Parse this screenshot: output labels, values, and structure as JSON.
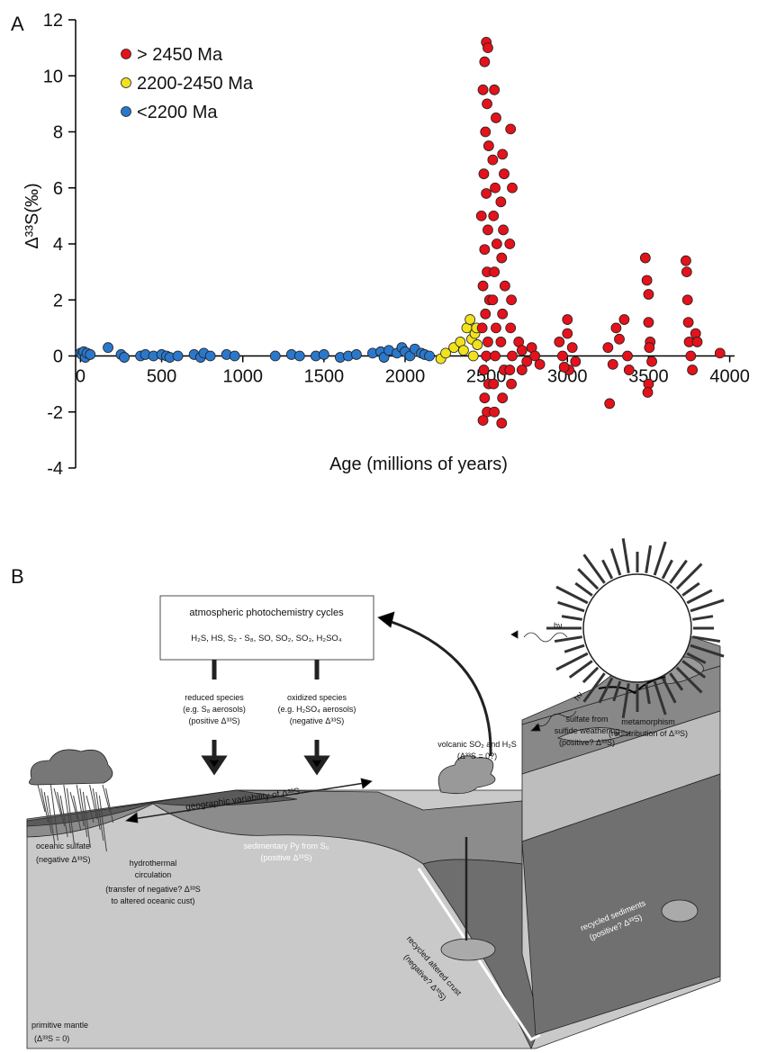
{
  "panel_labels": [
    "A",
    "B"
  ],
  "chart_data": {
    "type": "scatter",
    "x_label": "Age (millions of years)",
    "y_label": "Δ³³S(‰)",
    "xlim": [
      -30,
      4030
    ],
    "ylim": [
      -4,
      12
    ],
    "xticks": [
      0,
      500,
      1000,
      1500,
      2000,
      2500,
      3000,
      3500,
      4000
    ],
    "yticks": [
      -4,
      -2,
      0,
      2,
      4,
      6,
      8,
      10,
      12
    ],
    "legend": "upper left",
    "series": [
      {
        "name": "> 2450 Ma",
        "color": "#e3121b",
        "x": [
          2500,
          2510,
          2490,
          2480,
          2505,
          2495,
          2515,
          2485,
          2500,
          2470,
          2510,
          2490,
          2505,
          2480,
          2520,
          2495,
          2475,
          2510,
          2500,
          2485,
          2515,
          2490,
          2505,
          2480,
          2550,
          2560,
          2540,
          2555,
          2545,
          2565,
          2550,
          2540,
          2560,
          2555,
          2545,
          2550,
          2600,
          2610,
          2590,
          2605,
          2595,
          2615,
          2600,
          2590,
          2610,
          2600,
          2595,
          2650,
          2660,
          2645,
          2655,
          2650,
          2660,
          2645,
          2655,
          2700,
          2720,
          2750,
          2780,
          2800,
          2830,
          2720,
          2950,
          2970,
          3000,
          3000,
          3010,
          3030,
          3050,
          2980,
          3250,
          3280,
          3300,
          3320,
          3350,
          3370,
          3380,
          3260,
          3480,
          3490,
          3500,
          3500,
          3510,
          3520,
          3500,
          3495,
          3505,
          3730,
          3735,
          3740,
          3745,
          3750,
          3760,
          3770,
          3790,
          3800,
          3940
        ],
        "y": [
          11.2,
          11.0,
          10.5,
          9.5,
          9.0,
          8.0,
          7.5,
          6.5,
          5.8,
          5.0,
          4.5,
          3.8,
          3.0,
          2.5,
          2.0,
          1.5,
          1.0,
          0.5,
          0.0,
          -0.5,
          -1.0,
          -1.5,
          -2.0,
          -2.3,
          9.5,
          8.5,
          7.0,
          6.0,
          5.0,
          4.0,
          3.0,
          2.0,
          1.0,
          0.0,
          -1.0,
          -2.0,
          7.2,
          6.5,
          5.5,
          4.5,
          3.5,
          2.5,
          1.5,
          0.5,
          -0.5,
          -1.5,
          -2.4,
          8.1,
          6.0,
          4.0,
          2.0,
          1.0,
          0.0,
          -0.5,
          -1.0,
          0.5,
          0.2,
          -0.2,
          0.3,
          0.0,
          -0.3,
          -0.5,
          0.5,
          0.0,
          1.3,
          0.8,
          -0.5,
          0.3,
          -0.2,
          -0.4,
          0.3,
          -0.3,
          1.0,
          0.6,
          1.3,
          0.0,
          -0.5,
          -1.7,
          3.5,
          2.7,
          2.2,
          1.2,
          0.5,
          -0.2,
          -1.0,
          -1.3,
          0.3,
          3.4,
          3.0,
          2.0,
          1.2,
          0.5,
          0.0,
          -0.5,
          0.8,
          0.5,
          0.1
        ]
      },
      {
        "name": "2200-2450 Ma",
        "color": "#f2e21e",
        "x": [
          2220,
          2250,
          2300,
          2340,
          2360,
          2380,
          2400,
          2410,
          2420,
          2430,
          2440,
          2445
        ],
        "y": [
          -0.1,
          0.1,
          0.3,
          0.5,
          0.2,
          1.0,
          1.3,
          0.6,
          0.0,
          0.8,
          1.0,
          0.4
        ]
      },
      {
        "name": "<2200 Ma",
        "color": "#2a78cc",
        "x": [
          0,
          10,
          20,
          30,
          40,
          60,
          170,
          250,
          270,
          370,
          400,
          450,
          500,
          530,
          550,
          600,
          700,
          740,
          760,
          800,
          900,
          950,
          1200,
          1300,
          1350,
          1450,
          1500,
          1600,
          1650,
          1700,
          1800,
          1850,
          1870,
          1900,
          1950,
          1980,
          2000,
          2030,
          2060,
          2100,
          2120,
          2150
        ],
        "y": [
          0.1,
          0.05,
          0.15,
          -0.05,
          0.1,
          0.05,
          0.3,
          0.05,
          -0.05,
          0.0,
          0.05,
          0.0,
          0.05,
          0.0,
          -0.05,
          0.0,
          0.05,
          -0.05,
          0.1,
          0.0,
          0.05,
          0.0,
          0.0,
          0.05,
          0.0,
          0.0,
          0.05,
          -0.05,
          0.0,
          0.05,
          0.1,
          0.15,
          -0.05,
          0.2,
          0.1,
          0.3,
          0.15,
          0.0,
          0.25,
          0.1,
          0.05,
          0.0
        ]
      }
    ]
  },
  "diagram": {
    "box": {
      "title": "atmospheric photochemistry cycles",
      "species": "H₂S, HS, S₂ - S₈, SO, SO₂, SO₃, H₂SO₄"
    },
    "reduced": [
      "reduced species",
      "(e.g. S₈ aerosols)",
      "(positive Δ³³S)"
    ],
    "oxidized": [
      "oxidized species",
      "(e.g. H₂SO₄ aerosols)",
      "(negative Δ³³S)"
    ],
    "light": [
      "hν",
      "hν"
    ],
    "volcanic": [
      "volcanic SO₂ and H₂S",
      "(Δ³³S = 0?)"
    ],
    "weathering": [
      "sulfate from",
      "sulfide weathering",
      "(positive? Δ³³S)"
    ],
    "geographic": "geographic variability of Δ³³S",
    "oceanic": [
      "oceanic sulfate",
      "(negative Δ³³S)"
    ],
    "sedimentary": [
      "sedimentary Py from S₀",
      "(positive Δ³³S)"
    ],
    "metamorphism": [
      "metamorphism",
      "(redistribution of Δ³³S)"
    ],
    "hydrothermal": [
      "hydrothermal",
      "circulation",
      "(transfer of negative? Δ³³S",
      "to altered oceanic cust)"
    ],
    "altered_crust": [
      "recycled altered crust",
      "(negative? Δ³³S)"
    ],
    "recycled_sediments": [
      "recycled sediments",
      "(positive? Δ³³S)"
    ],
    "mantle": [
      "primitive mantle",
      "(Δ³³S = 0)"
    ]
  }
}
